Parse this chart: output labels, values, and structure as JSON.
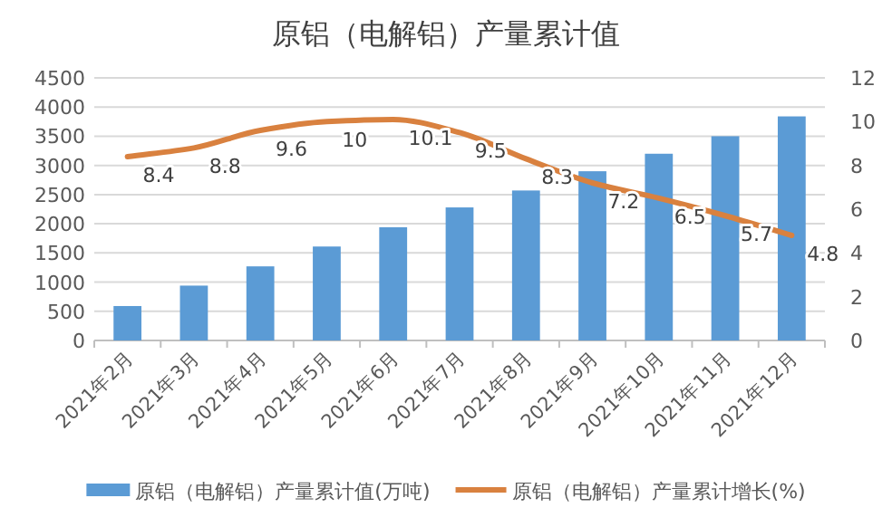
{
  "chart_data": {
    "type": "bar",
    "title": "原铝（电解铝）产量累计值",
    "categories": [
      "2021年2月",
      "2021年3月",
      "2021年4月",
      "2021年5月",
      "2021年6月",
      "2021年7月",
      "2021年8月",
      "2021年9月",
      "2021年10月",
      "2021年11月",
      "2021年12月"
    ],
    "series": [
      {
        "name": "原铝（电解铝）产量累计值(万吨)",
        "color": "#5b9bd5",
        "values": [
          590,
          940,
          1270,
          1610,
          1940,
          2280,
          2570,
          2900,
          3200,
          3500,
          3840
        ]
      },
      {
        "name": "原铝（电解铝）产量累计增长(%)",
        "type": "line",
        "axis": "y2",
        "color": "#d9813f",
        "values": [
          8.4,
          8.8,
          9.6,
          10,
          10.1,
          9.5,
          8.3,
          7.2,
          6.5,
          5.7,
          4.8
        ],
        "value_labels": [
          "8.4",
          "8.8",
          "9.6",
          "10",
          "10.1",
          "9.5",
          "8.3",
          "7.2",
          "6.5",
          "5.7",
          "4.8"
        ]
      }
    ],
    "ylim": [
      0,
      4500
    ],
    "yticks": [
      0,
      500,
      1000,
      1500,
      2000,
      2500,
      3000,
      3500,
      4000,
      4500
    ],
    "y2lim": [
      0,
      12
    ],
    "y2ticks": [
      0,
      2,
      4,
      6,
      8,
      10,
      12
    ],
    "grid": "y",
    "legend": "bottom",
    "marker": "none"
  }
}
